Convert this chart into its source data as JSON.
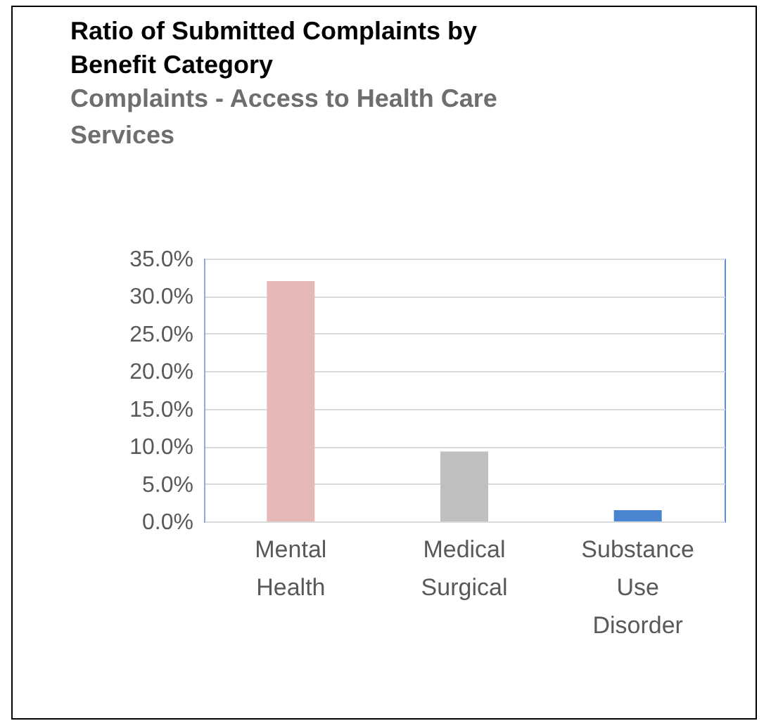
{
  "chart_data": {
    "type": "bar",
    "title": [
      "Ratio of Submitted Complaints by",
      "Benefit Category"
    ],
    "subtitle": [
      "Complaints - Access to Health Care",
      "Services"
    ],
    "categories": [
      "Mental Health",
      "Medical Surgical",
      "Substance Use Disorder"
    ],
    "values": [
      32.0,
      9.3,
      1.5
    ],
    "colors": [
      "#e6b8b7",
      "#bfbfbf",
      "#4a86d0"
    ],
    "ylim": [
      0,
      35
    ],
    "yticks": [
      {
        "value": 0,
        "label": "0.0%"
      },
      {
        "value": 5,
        "label": "5.0%"
      },
      {
        "value": 10,
        "label": "10.0%"
      },
      {
        "value": 15,
        "label": "15.0%"
      },
      {
        "value": 20,
        "label": "20.0%"
      },
      {
        "value": 25,
        "label": "25.0%"
      },
      {
        "value": 30,
        "label": "30.0%"
      },
      {
        "value": 35,
        "label": "35.0%"
      }
    ],
    "grid": "y"
  }
}
